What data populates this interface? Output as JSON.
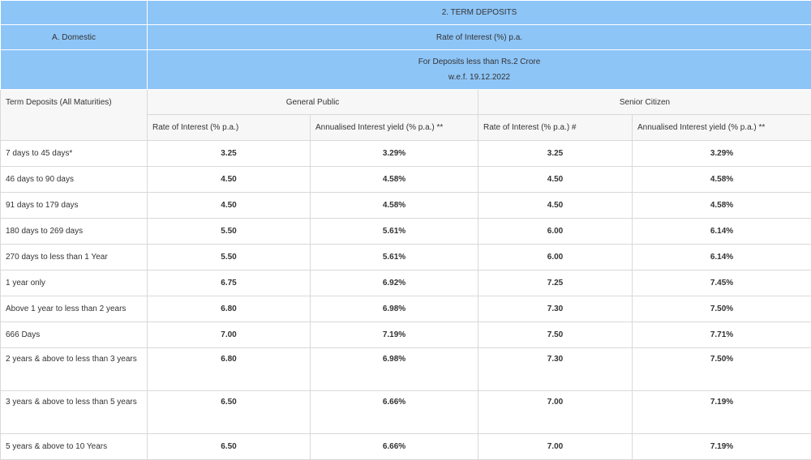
{
  "header": {
    "section_title": "2. TERM DEPOSITS",
    "domestic_label": "A. Domestic",
    "rate_label": "Rate of Interest (%) p.a.",
    "deposit_note_line1": "For Deposits less than Rs.2 Crore",
    "deposit_note_line2": "w.e.f. 19.12.2022"
  },
  "columns": {
    "term_label": "Term Deposits (All Maturities)",
    "general_public": "General Public",
    "senior_citizen": "Senior Citizen",
    "gp_rate": "Rate of Interest (% p.a.)",
    "gp_yield": "Annualised Interest yield (% p.a.) **",
    "sc_rate": "Rate of Interest (% p.a.) #",
    "sc_yield": "Annualised Interest yield (% p.a.) **"
  },
  "rows": [
    {
      "term": "7 days to 45 days*",
      "gp_rate": "3.25",
      "gp_yield": "3.29%",
      "sc_rate": "3.25",
      "sc_yield": "3.29%"
    },
    {
      "term": "46 days to 90 days",
      "gp_rate": "4.50",
      "gp_yield": "4.58%",
      "sc_rate": "4.50",
      "sc_yield": "4.58%"
    },
    {
      "term": "91 days to 179 days",
      "gp_rate": "4.50",
      "gp_yield": "4.58%",
      "sc_rate": "4.50",
      "sc_yield": "4.58%"
    },
    {
      "term": "180 days to 269 days",
      "gp_rate": "5.50",
      "gp_yield": "5.61%",
      "sc_rate": "6.00",
      "sc_yield": "6.14%"
    },
    {
      "term": "270 days to less than 1 Year",
      "gp_rate": "5.50",
      "gp_yield": "5.61%",
      "sc_rate": "6.00",
      "sc_yield": "6.14%"
    },
    {
      "term": "1 year only",
      "gp_rate": "6.75",
      "gp_yield": "6.92%",
      "sc_rate": "7.25",
      "sc_yield": "7.45%"
    },
    {
      "term": "Above 1 year to less than 2 years",
      "gp_rate": "6.80",
      "gp_yield": "6.98%",
      "sc_rate": "7.30",
      "sc_yield": "7.50%"
    },
    {
      "term": "666 Days",
      "gp_rate": "7.00",
      "gp_yield": "7.19%",
      "sc_rate": "7.50",
      "sc_yield": "7.71%"
    },
    {
      "term": "2 years & above to less than 3 years",
      "gp_rate": "6.80",
      "gp_yield": "6.98%",
      "sc_rate": "7.30",
      "sc_yield": "7.50%"
    },
    {
      "term": "3 years & above to less than 5 years",
      "gp_rate": "6.50",
      "gp_yield": "6.66%",
      "sc_rate": "7.00",
      "sc_yield": "7.19%"
    },
    {
      "term": "5 years & above to 10 Years",
      "gp_rate": "6.50",
      "gp_yield": "6.66%",
      "sc_rate": "7.00",
      "sc_yield": "7.19%"
    }
  ]
}
